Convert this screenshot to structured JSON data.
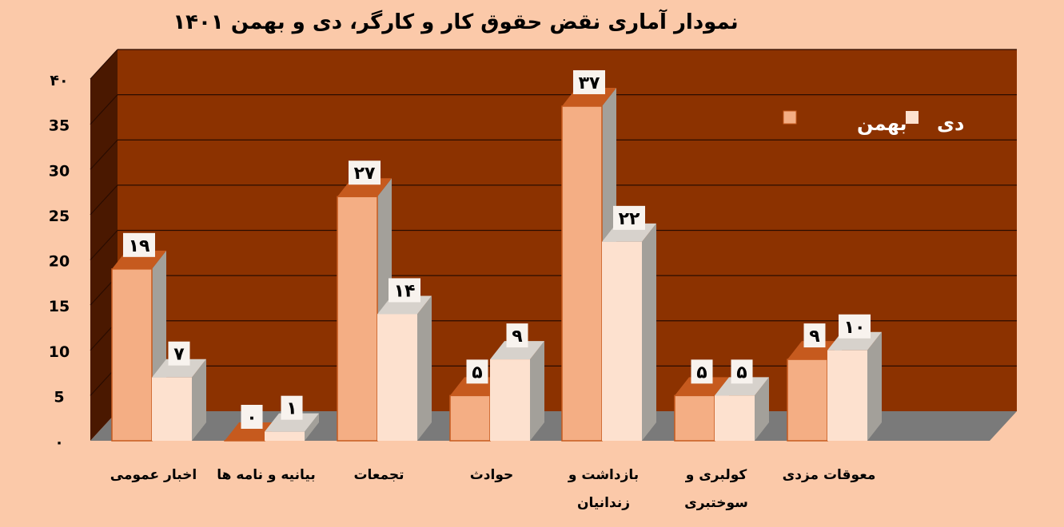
{
  "chart_data": {
    "type": "bar",
    "title": "نمودار آماری نقض حقوق کار و کارگر، دی و بهمن ۱۴۰۱",
    "categories": [
      [
        "اخبار عمومی"
      ],
      [
        "بیانیه و نامه ها"
      ],
      [
        "تجمعات"
      ],
      [
        "حوادث"
      ],
      [
        "بازداشت و",
        "زندانیان"
      ],
      [
        "کولبری و",
        "سوختبری"
      ],
      [
        "معوقات مزدی"
      ]
    ],
    "series": [
      {
        "name": "بهمن",
        "values": [
          19,
          0,
          27,
          5,
          37,
          5,
          9
        ],
        "labels": [
          "۱۹",
          "۰",
          "۲۷",
          "۵",
          "۳۷",
          "۵",
          "۹"
        ],
        "color": "#f4ae84"
      },
      {
        "name": "دی",
        "values": [
          7,
          1,
          14,
          9,
          22,
          5,
          10
        ],
        "labels": [
          "۷",
          "۱",
          "۱۴",
          "۹",
          "۲۲",
          "۵",
          "۱۰"
        ],
        "color": "#fde1cf"
      }
    ],
    "ylim": [
      0,
      40
    ],
    "yticks": [
      "۰",
      "5",
      "10",
      "15",
      "20",
      "25",
      "30",
      "35",
      "۴۰"
    ],
    "grid": true,
    "legend": "top-right",
    "colors": {
      "background": "#fbc9a9",
      "plot_wall": "#8c3200",
      "side_wall": "#4a1800",
      "floor": "#7a7a7a",
      "grid": "#2a0c00",
      "bar_edge": "#c65a1e",
      "bar_side": "#a3a09a",
      "bar_top": "#d7d2cc"
    }
  }
}
